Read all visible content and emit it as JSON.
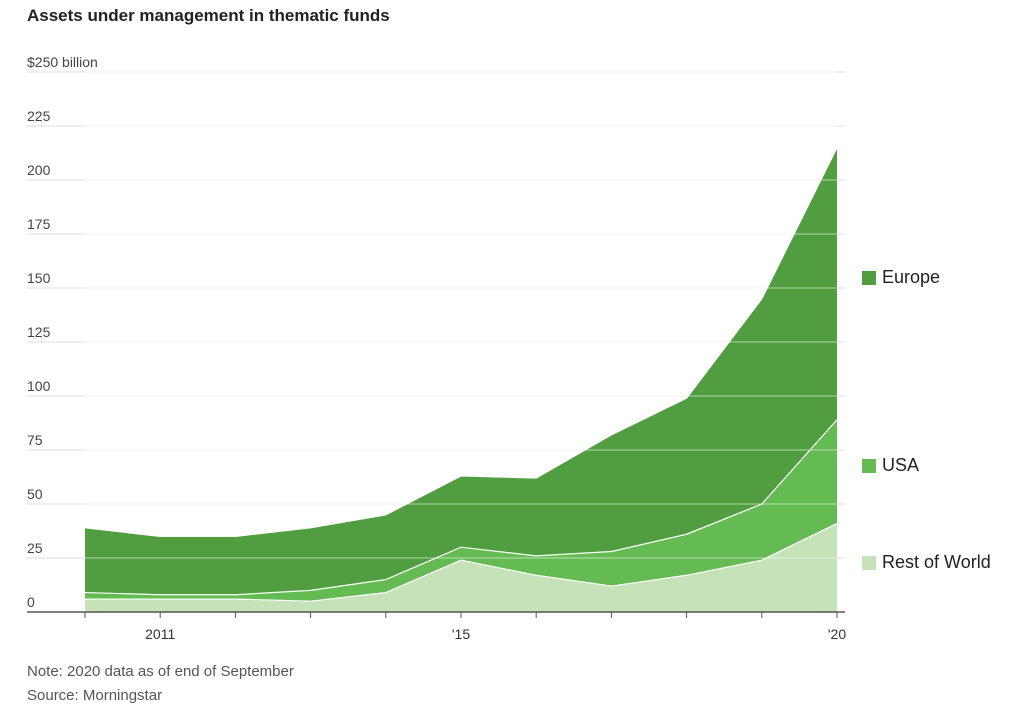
{
  "title": "Assets under management in thematic funds",
  "note": "Note: 2020 data as of end of September",
  "source": "Source: Morningstar",
  "colors": {
    "europe": "#519e41",
    "usa": "#63bb52",
    "rest": "#c5e2b9",
    "grid": "#dddddd",
    "axis": "#555555"
  },
  "chart_data": {
    "type": "area",
    "stacked": true,
    "title": "Assets under management in thematic funds",
    "x": [
      2010,
      2011,
      2012,
      2013,
      2014,
      2015,
      2016,
      2017,
      2018,
      2019,
      2020
    ],
    "x_ticks": [
      {
        "value": 2011,
        "label": "2011"
      },
      {
        "value": 2015,
        "label": "'15"
      },
      {
        "value": 2020,
        "label": "'20"
      }
    ],
    "y_ticks": [
      {
        "value": 0,
        "label": "0"
      },
      {
        "value": 25,
        "label": "25"
      },
      {
        "value": 50,
        "label": "50"
      },
      {
        "value": 75,
        "label": "75"
      },
      {
        "value": 100,
        "label": "100"
      },
      {
        "value": 125,
        "label": "125"
      },
      {
        "value": 150,
        "label": "150"
      },
      {
        "value": 175,
        "label": "175"
      },
      {
        "value": 200,
        "label": "200"
      },
      {
        "value": 225,
        "label": "225"
      },
      {
        "value": 250,
        "label": "$250 billion"
      }
    ],
    "ylim": [
      0,
      250
    ],
    "xlim": [
      2010,
      2020
    ],
    "series": [
      {
        "name": "Rest of World",
        "key": "rest",
        "values": [
          6,
          6,
          6,
          5,
          9,
          24,
          17,
          12,
          17,
          24,
          41
        ]
      },
      {
        "name": "USA",
        "key": "usa",
        "values": [
          3,
          2,
          2,
          5,
          6,
          6,
          9,
          16,
          19,
          26,
          48
        ]
      },
      {
        "name": "Europe",
        "key": "europe",
        "values": [
          30,
          27,
          27,
          29,
          30,
          33,
          36,
          54,
          63,
          95,
          126
        ]
      }
    ],
    "legend": [
      {
        "name": "Europe",
        "key": "europe"
      },
      {
        "name": "USA",
        "key": "usa"
      },
      {
        "name": "Rest of World",
        "key": "rest"
      }
    ],
    "grid": true,
    "legend_position": "right"
  }
}
